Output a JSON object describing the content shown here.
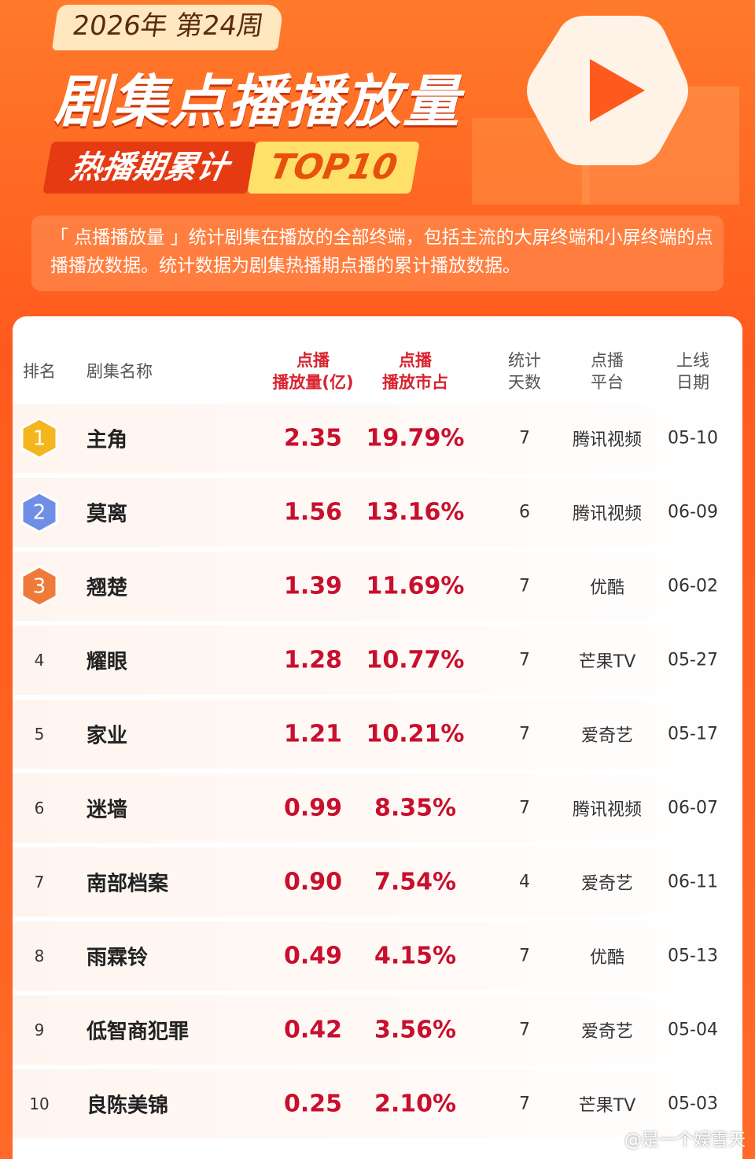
{
  "header": {
    "week": "2026年 第24周",
    "title": "剧集点播播放量",
    "tag": "热播期累计",
    "top": "TOP10",
    "note": "「 点播播放量 」统计剧集在播放的全部终端，包括主流的大屏终端和小屏终端的点播播放数据。统计数据为剧集热播期点播的累计播放数据。"
  },
  "table": {
    "columns": [
      [
        "排名"
      ],
      [
        "剧集名称"
      ],
      [
        "点播",
        "播放量(亿)"
      ],
      [
        "点播",
        "播放市占"
      ],
      [
        "统计",
        "天数"
      ],
      [
        "点播",
        "平台"
      ],
      [
        "上线",
        "日期"
      ]
    ],
    "rows": [
      [
        "1",
        "主角",
        "2.35",
        "19.79%",
        "7",
        "腾讯视频",
        "05-10"
      ],
      [
        "2",
        "莫离",
        "1.56",
        "13.16%",
        "6",
        "腾讯视频",
        "06-09"
      ],
      [
        "3",
        "翘楚",
        "1.39",
        "11.69%",
        "7",
        "优酷",
        "06-02"
      ],
      [
        "4",
        "耀眼",
        "1.28",
        "10.77%",
        "7",
        "芒果TV",
        "05-27"
      ],
      [
        "5",
        "家业",
        "1.21",
        "10.21%",
        "7",
        "爱奇艺",
        "05-17"
      ],
      [
        "6",
        "迷墙",
        "0.99",
        "8.35%",
        "7",
        "腾讯视频",
        "06-07"
      ],
      [
        "7",
        "南部档案",
        "0.90",
        "7.54%",
        "4",
        "爱奇艺",
        "06-11"
      ],
      [
        "8",
        "雨霖铃",
        "0.49",
        "4.15%",
        "7",
        "优酷",
        "05-13"
      ],
      [
        "9",
        "低智商犯罪",
        "0.42",
        "3.56%",
        "7",
        "爱奇艺",
        "05-04"
      ],
      [
        "10",
        "良陈美锦",
        "0.25",
        "2.10%",
        "7",
        "芒果TV",
        "05-03"
      ]
    ]
  },
  "watermark": "@是一个娱雪天"
}
